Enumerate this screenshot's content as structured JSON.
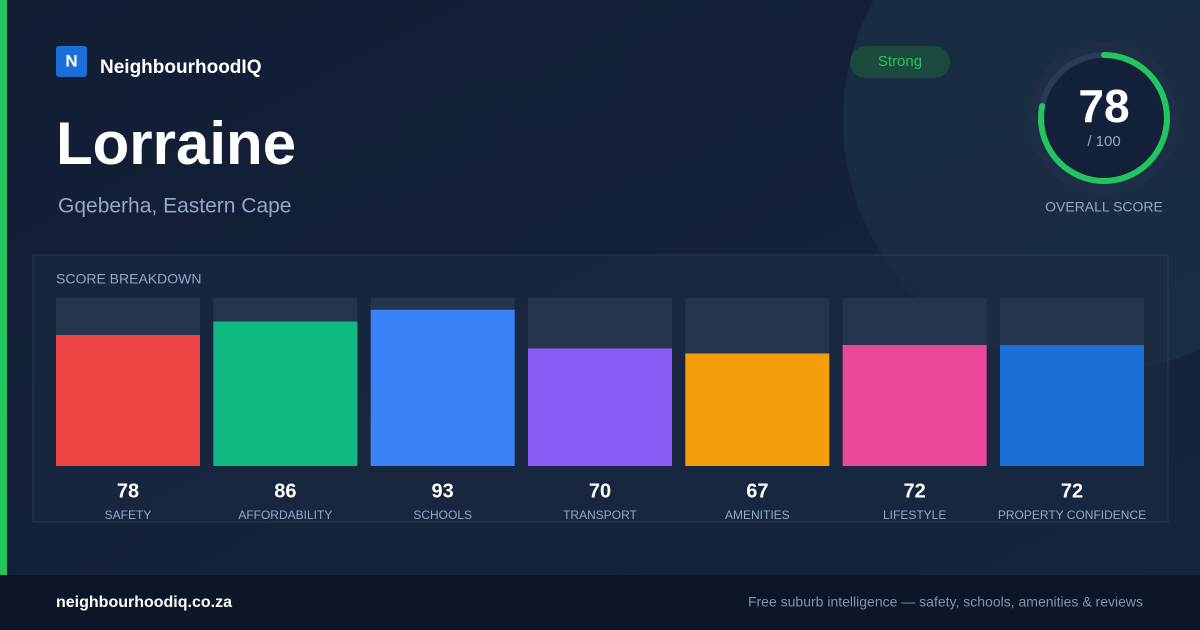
{
  "brand": {
    "logo": "N",
    "name": "NeighbourhoodIQ"
  },
  "title": "Lorraine",
  "location": "Gqeberha, Eastern Cape",
  "badge": "Strong",
  "score": {
    "value": 78,
    "max": {
      "value": 100,
      "label": "/ 100"
    },
    "label": "OVERALL SCORE"
  },
  "chart_data": {
    "type": "bar",
    "title": "SCORE BREAKDOWN",
    "categories": [
      "SAFETY",
      "AFFORDABILITY",
      "SCHOOLS",
      "TRANSPORT",
      "AMENITIES",
      "LIFESTYLE",
      "PROPERTY CONFIDENCE"
    ],
    "values": [
      78,
      86,
      93,
      70,
      67,
      72,
      72
    ],
    "colors": [
      "#ef4444",
      "#10b981",
      "#3b82f6",
      "#8b5cf6",
      "#f59e0b",
      "#ec4899",
      "#1d6fd8"
    ],
    "ylim": [
      0,
      100
    ]
  },
  "footer": {
    "url": "neighbourhoodiq.co.za",
    "tagline": "Free suburb intelligence — safety, schools, amenities & reviews"
  }
}
